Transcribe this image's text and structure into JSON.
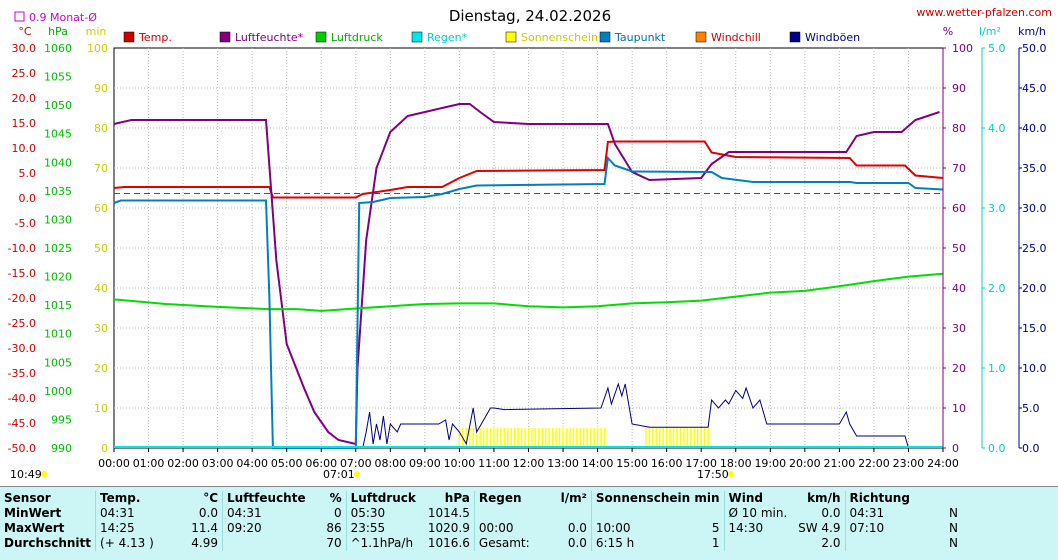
{
  "title": "Dienstag, 24.02.2026",
  "website": "www.wetter-pfalzen.com",
  "monthly_avg_label": "0.9 Monat-Ø",
  "left_axes": {
    "temp": {
      "unit": "°C",
      "color": "#cc0000",
      "ticks": [
        "30.0",
        "25.0",
        "20.0",
        "15.0",
        "10.0",
        "5.0",
        "0.0",
        "-5.0",
        "-10.0",
        "-15.0",
        "-20.0",
        "-25.0",
        "-30.0",
        "-35.0",
        "-40.0",
        "-45.0",
        "-50.0"
      ]
    },
    "pressure": {
      "unit": "hPa",
      "color": "#00cc00",
      "ticks": [
        "1060",
        "1055",
        "1050",
        "1045",
        "1040",
        "1035",
        "1030",
        "1025",
        "1020",
        "1015",
        "1010",
        "1005",
        "1000",
        "995",
        "990"
      ]
    },
    "sun": {
      "unit": "min",
      "color": "#cccc00",
      "ticks": [
        "100",
        "90",
        "80",
        "70",
        "60",
        "50",
        "40",
        "30",
        "20",
        "10",
        "0"
      ]
    }
  },
  "right_axes": {
    "humidity": {
      "unit": "%",
      "color": "#800080",
      "ticks": [
        "100",
        "90",
        "80",
        "70",
        "60",
        "50",
        "40",
        "30",
        "20",
        "10",
        "0"
      ]
    },
    "rain": {
      "unit": "l/m²",
      "color": "#00cccc",
      "ticks": [
        "5.0",
        "4.0",
        "3.0",
        "2.0",
        "1.0",
        "0.0"
      ]
    },
    "wind": {
      "unit": "km/h",
      "color": "#000080",
      "ticks": [
        "50.0",
        "45.0",
        "40.0",
        "35.0",
        "30.0",
        "25.0",
        "20.0",
        "15.0",
        "10.0",
        "5.0",
        "0.0"
      ]
    }
  },
  "legend": [
    {
      "label": "Temp.",
      "color": "#cc0000",
      "text_color": "#cc0000"
    },
    {
      "label": "Luftfeuchte*",
      "color": "#800080",
      "text_color": "#800080"
    },
    {
      "label": "Luftdruck",
      "color": "#00cc00",
      "text_color": "#00aa00"
    },
    {
      "label": "Regen*",
      "color": "#00e5e5",
      "text_color": "#00cccc"
    },
    {
      "label": "Sonnenschein",
      "color": "#ffff00",
      "text_color": "#cccc00"
    },
    {
      "label": "Taupunkt",
      "color": "#0080c0",
      "text_color": "#0070b0"
    },
    {
      "label": "Windchill",
      "color": "#ff8000",
      "text_color": "#cc0000"
    },
    {
      "label": "Windböen",
      "color": "#000080",
      "text_color": "#000080"
    }
  ],
  "x_ticks": [
    "00:00",
    "01:00",
    "02:00",
    "03:00",
    "04:00",
    "05:00",
    "06:00",
    "07:00",
    "08:00",
    "09:00",
    "10:00",
    "11:00",
    "12:00",
    "13:00",
    "14:00",
    "15:00",
    "16:00",
    "17:00",
    "18:00",
    "19:00",
    "20:00",
    "21:00",
    "22:00",
    "23:00",
    "24:00"
  ],
  "sunrise": "07:01",
  "sunset": "17:50",
  "time_label": "10:49",
  "chart_data": {
    "type": "line",
    "title": "Dienstag, 24.02.2026",
    "x_range_hours": [
      0,
      24
    ],
    "temp_range": [
      -50,
      30
    ],
    "pressure_range": [
      990,
      1060
    ],
    "humidity_range": [
      0,
      100
    ],
    "wind_range": [
      0,
      50
    ],
    "sun_range": [
      0,
      100
    ],
    "monthly_avg_temp": 0.9,
    "series": [
      {
        "name": "Temp.",
        "color": "#e00000",
        "axis": "temp",
        "points": [
          [
            0,
            2
          ],
          [
            0.3,
            2.2
          ],
          [
            4.5,
            2.2
          ],
          [
            4.6,
            0.1
          ],
          [
            7.0,
            0.1
          ],
          [
            7.2,
            0.8
          ],
          [
            8.0,
            1.6
          ],
          [
            8.5,
            2.2
          ],
          [
            9.5,
            2.2
          ],
          [
            10.0,
            4.0
          ],
          [
            10.5,
            5.4
          ],
          [
            14.2,
            5.6
          ],
          [
            14.3,
            11.2
          ],
          [
            14.5,
            11.3
          ],
          [
            17.1,
            11.3
          ],
          [
            17.3,
            9.1
          ],
          [
            18.0,
            8.2
          ],
          [
            21.3,
            8.0
          ],
          [
            21.5,
            6.5
          ],
          [
            22.9,
            6.5
          ],
          [
            23.2,
            4.5
          ],
          [
            24,
            4.0
          ]
        ]
      },
      {
        "name": "Luftfeuchte*",
        "color": "#800080",
        "axis": "humidity",
        "points": [
          [
            0,
            81
          ],
          [
            0.5,
            82
          ],
          [
            4.4,
            82
          ],
          [
            4.7,
            47
          ],
          [
            5.0,
            26
          ],
          [
            5.5,
            15
          ],
          [
            5.8,
            9
          ],
          [
            6.2,
            4
          ],
          [
            6.5,
            2
          ],
          [
            7.0,
            1
          ],
          [
            7.05,
            20
          ],
          [
            7.3,
            52
          ],
          [
            7.6,
            70
          ],
          [
            8.0,
            79
          ],
          [
            8.5,
            83
          ],
          [
            9.0,
            84
          ],
          [
            9.5,
            85
          ],
          [
            10.0,
            86
          ],
          [
            10.3,
            86
          ],
          [
            10.6,
            84
          ],
          [
            11.0,
            81.5
          ],
          [
            12.0,
            81
          ],
          [
            14.3,
            81
          ],
          [
            14.5,
            76
          ],
          [
            15.0,
            69
          ],
          [
            15.5,
            67
          ],
          [
            17.0,
            67.5
          ],
          [
            17.3,
            71
          ],
          [
            17.8,
            74
          ],
          [
            21.2,
            74
          ],
          [
            21.5,
            78
          ],
          [
            22.0,
            79
          ],
          [
            22.8,
            79
          ],
          [
            23.2,
            82
          ],
          [
            23.9,
            84
          ]
        ]
      },
      {
        "name": "Luftdruck",
        "color": "#00dd00",
        "axis": "pressure",
        "points": [
          [
            0,
            1016
          ],
          [
            1.5,
            1015.2
          ],
          [
            3,
            1014.7
          ],
          [
            4.5,
            1014.3
          ],
          [
            5.3,
            1014.3
          ],
          [
            6,
            1014
          ],
          [
            7.2,
            1014.5
          ],
          [
            8,
            1014.8
          ],
          [
            9,
            1015.2
          ],
          [
            10,
            1015.3
          ],
          [
            11,
            1015.3
          ],
          [
            12,
            1014.8
          ],
          [
            13,
            1014.6
          ],
          [
            14,
            1014.8
          ],
          [
            15,
            1015.3
          ],
          [
            16,
            1015.5
          ],
          [
            17,
            1015.8
          ],
          [
            18,
            1016.5
          ],
          [
            19,
            1017.2
          ],
          [
            20,
            1017.5
          ],
          [
            21,
            1018.3
          ],
          [
            22,
            1019.2
          ],
          [
            23,
            1020.0
          ],
          [
            24,
            1020.5
          ]
        ]
      },
      {
        "name": "Taupunkt",
        "color": "#0080c0",
        "axis": "temp",
        "points": [
          [
            0,
            -1
          ],
          [
            0.2,
            -0.5
          ],
          [
            4.4,
            -0.5
          ],
          [
            4.5,
            -20
          ],
          [
            4.6,
            -50
          ],
          [
            7.0,
            -50
          ],
          [
            7.1,
            -1
          ],
          [
            7.5,
            -0.8
          ],
          [
            8.0,
            0
          ],
          [
            9.0,
            0.2
          ],
          [
            9.5,
            0.8
          ],
          [
            10.0,
            1.8
          ],
          [
            10.5,
            2.5
          ],
          [
            14.2,
            2.8
          ],
          [
            14.3,
            8
          ],
          [
            14.5,
            6.5
          ],
          [
            15.0,
            5.3
          ],
          [
            17.3,
            5.2
          ],
          [
            17.6,
            4.0
          ],
          [
            18.5,
            3.2
          ],
          [
            21.3,
            3.2
          ],
          [
            21.5,
            3
          ],
          [
            23.0,
            3
          ],
          [
            23.2,
            2
          ],
          [
            24,
            1.7
          ]
        ]
      }
    ],
    "gusts": {
      "name": "Windböen",
      "color": "#000080",
      "axis": "wind",
      "points": [
        [
          7.2,
          0
        ],
        [
          7.3,
          2
        ],
        [
          7.4,
          4.5
        ],
        [
          7.5,
          0.5
        ],
        [
          7.6,
          3
        ],
        [
          7.7,
          1
        ],
        [
          7.8,
          4
        ],
        [
          7.9,
          0.5
        ],
        [
          8.0,
          3
        ],
        [
          8.2,
          2
        ],
        [
          8.3,
          3
        ],
        [
          8.6,
          3
        ],
        [
          9.4,
          3
        ],
        [
          9.6,
          3.5
        ],
        [
          9.7,
          1
        ],
        [
          9.8,
          3
        ],
        [
          10.0,
          2
        ],
        [
          10.2,
          0.5
        ],
        [
          10.4,
          5
        ],
        [
          10.5,
          2
        ],
        [
          10.7,
          3.5
        ],
        [
          10.9,
          5
        ],
        [
          11.0,
          5
        ],
        [
          11.3,
          4.8
        ],
        [
          14.1,
          5
        ],
        [
          14.3,
          7.5
        ],
        [
          14.4,
          5.5
        ],
        [
          14.6,
          8
        ],
        [
          14.7,
          6.5
        ],
        [
          14.8,
          8
        ],
        [
          15.0,
          3
        ],
        [
          15.5,
          2.6
        ],
        [
          17.2,
          2.6
        ],
        [
          17.3,
          6
        ],
        [
          17.5,
          5
        ],
        [
          17.7,
          6
        ],
        [
          17.8,
          5.5
        ],
        [
          18.0,
          7.2
        ],
        [
          18.2,
          6.2
        ],
        [
          18.3,
          7.5
        ],
        [
          18.5,
          5
        ],
        [
          18.7,
          6
        ],
        [
          18.9,
          3
        ],
        [
          21.0,
          3
        ],
        [
          21.2,
          4.5
        ],
        [
          21.3,
          3
        ],
        [
          21.5,
          1.5
        ],
        [
          22.9,
          1.5
        ],
        [
          23.0,
          0
        ],
        [
          23.5,
          0
        ]
      ]
    },
    "sunshine_bars": [
      [
        10.0,
        14.2
      ],
      [
        15.4,
        17.3
      ]
    ]
  },
  "stats": {
    "headers": {
      "sensor": "Sensor",
      "temp": "Temp.",
      "temp_unit": "°C",
      "hum": "Luftfeuchte",
      "hum_unit": "%",
      "press": "Luftdruck",
      "press_unit": "hPa",
      "rain": "Regen",
      "rain_unit": "l/m²",
      "sun": "Sonnenschein min",
      "wind": "Wind",
      "wind_unit": "km/h",
      "dir": "Richtung"
    },
    "rows": [
      {
        "label": "MinWert",
        "temp_time": "04:31",
        "temp": "0.0",
        "hum_time": "04:31",
        "hum": "0",
        "press_time": "05:30",
        "press": "1014.5",
        "rain_time": "",
        "rain": "",
        "sun_time": "",
        "sun": "",
        "wind_time": "Ø 10 min.",
        "wind": "0.0",
        "dir_time": "04:31",
        "dir": "N"
      },
      {
        "label": "MaxWert",
        "temp_time": "14:25",
        "temp": "11.4",
        "hum_time": "09:20",
        "hum": "86",
        "press_time": "23:55",
        "press": "1020.9",
        "rain_time": "00:00",
        "rain": "0.0",
        "sun_time": "10:00",
        "sun": "5",
        "wind_time": "14:30",
        "wind": "SW 4.9",
        "dir_time": "07:10",
        "dir": "N"
      },
      {
        "label": "Durchschnitt",
        "temp_time": "(+ 4.13 )",
        "temp": "4.99",
        "hum_time": "",
        "hum": "70",
        "press_time": "^1.1hPa/h",
        "press": "1016.6",
        "rain_time": "Gesamt:",
        "rain": "0.0",
        "sun_time": "6:15 h",
        "sun": "1",
        "wind_time": "",
        "wind": "2.0",
        "dir_time": "",
        "dir": "N"
      }
    ]
  }
}
